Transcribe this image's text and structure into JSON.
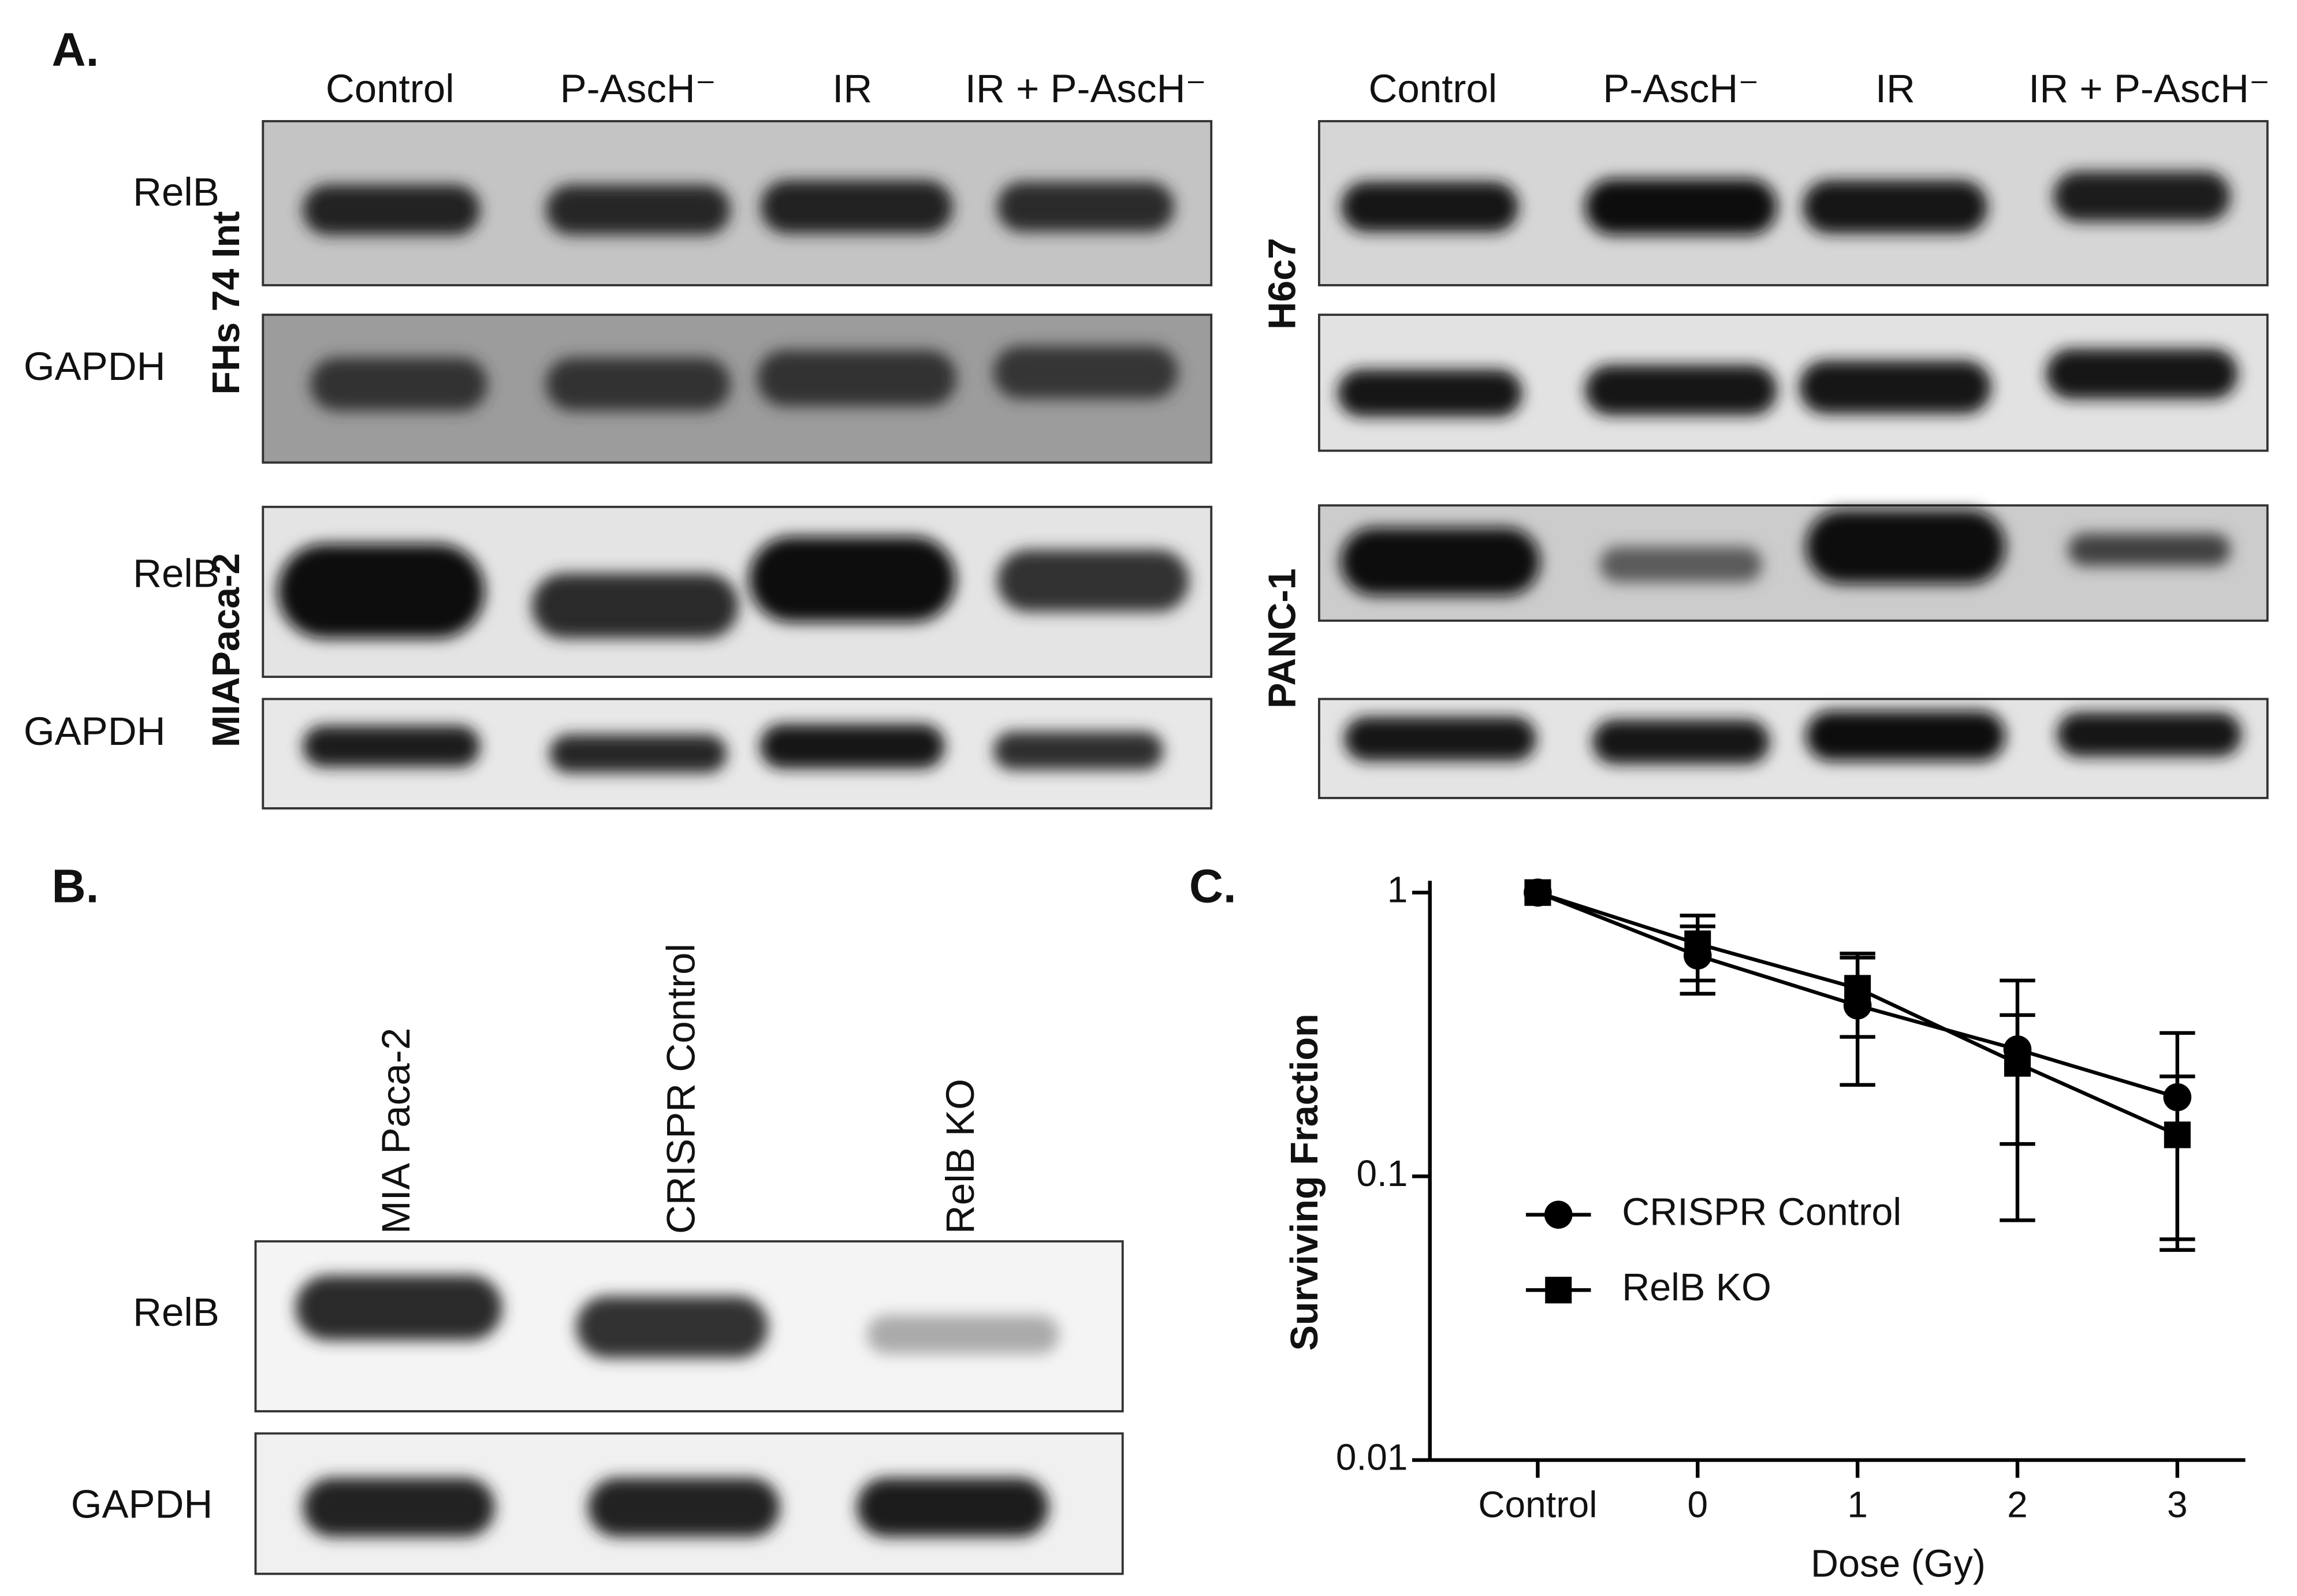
{
  "panel_a": {
    "label": "A.",
    "left": {
      "lanes": [
        "Control",
        "P-AscH⁻",
        "IR",
        "IR + P-AscH⁻"
      ],
      "blots": [
        {
          "cell_line": "FHs 74 Int",
          "proteins": [
            "RelB",
            "GAPDH"
          ]
        },
        {
          "cell_line": "MIAPaca-2",
          "proteins": [
            "RelB",
            "GAPDH"
          ]
        }
      ]
    },
    "right": {
      "lanes": [
        "Control",
        "P-AscH⁻",
        "IR",
        "IR + P-AscH⁻"
      ],
      "blots": [
        {
          "cell_line": "H6c7"
        },
        {
          "cell_line": "PANC-1"
        }
      ]
    }
  },
  "panel_b": {
    "label": "B.",
    "lanes": [
      "MIA Paca-2",
      "CRISPR Control",
      "RelB KO"
    ],
    "proteins": [
      "RelB",
      "GAPDH"
    ]
  },
  "panel_c": {
    "label": "C."
  },
  "chart_data": {
    "type": "line",
    "x_label": "Dose (Gy)",
    "y_label": "Surviving Fraction",
    "categories": [
      "Control",
      "0",
      "1",
      "2",
      "3"
    ],
    "log_y": true,
    "ylim": [
      0.01,
      1
    ],
    "yticks": [
      1,
      0.1,
      0.01
    ],
    "series": [
      {
        "name": "CRISPR Control",
        "color": "#000000",
        "marker": "circle",
        "values": [
          1,
          0.6,
          0.4,
          0.28,
          0.19
        ],
        "errors": [
          0,
          0.16,
          0.19,
          0.21,
          0.13
        ]
      },
      {
        "name": "RelB KO",
        "color": "#000000",
        "marker": "square",
        "values": [
          1,
          0.66,
          0.46,
          0.25,
          0.14
        ],
        "errors": [
          0,
          0.17,
          0.15,
          0.12,
          0.085
        ]
      }
    ]
  }
}
